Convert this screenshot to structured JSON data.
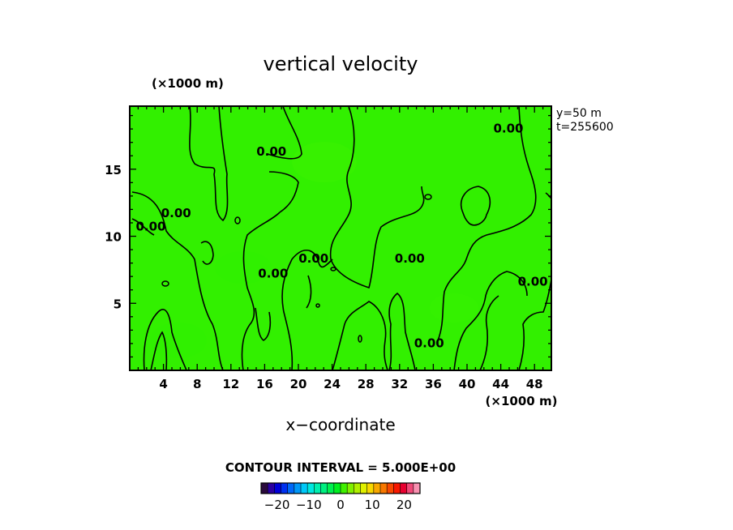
{
  "chart_data": {
    "type": "contour",
    "title": "vertical velocity",
    "xlabel": "x−coordinate",
    "y_unit_label": "(×1000 m)",
    "x_unit_label": "(×1000 m)",
    "xlim": [
      0,
      50
    ],
    "ylim": [
      0,
      19.7
    ],
    "x_ticks": [
      4,
      8,
      12,
      16,
      20,
      24,
      28,
      32,
      36,
      40,
      44,
      48
    ],
    "x_tick_labels": [
      "4",
      "8",
      "12",
      "16",
      "20",
      "24",
      "28",
      "32",
      "36",
      "40",
      "44",
      "48"
    ],
    "y_ticks": [
      5,
      10,
      15
    ],
    "y_tick_labels": [
      "5",
      "10",
      "15"
    ],
    "info_lines": [
      "y=50  m",
      "t=255600"
    ],
    "contour_interval_text": "CONTOUR INTERVAL = 5.000E+00",
    "contour_labels": [
      {
        "text": "0.00",
        "x": 5.5,
        "y": 11.7
      },
      {
        "text": "0.00",
        "x": 2.5,
        "y": 10.7
      },
      {
        "text": "0.00",
        "x": 16.8,
        "y": 16.3
      },
      {
        "text": "0.00",
        "x": 17.0,
        "y": 7.2
      },
      {
        "text": "0.00",
        "x": 21.8,
        "y": 8.3
      },
      {
        "text": "0.00",
        "x": 33.2,
        "y": 8.3
      },
      {
        "text": "0.00",
        "x": 35.5,
        "y": 2.0
      },
      {
        "text": "0.00",
        "x": 44.9,
        "y": 18.0
      },
      {
        "text": "0.00",
        "x": 47.8,
        "y": 6.6
      }
    ],
    "colorbar": {
      "min": -25,
      "max": 25,
      "tick_values": [
        -20,
        -10,
        0,
        10,
        20
      ],
      "tick_labels": [
        "−20",
        "−10",
        "0",
        "10",
        "20"
      ],
      "colors": [
        "#2a0a3c",
        "#2a00a0",
        "#0000d8",
        "#0030f0",
        "#0068f8",
        "#0098f8",
        "#00c8f8",
        "#00e8e0",
        "#00f0b0",
        "#00f080",
        "#00f050",
        "#00f020",
        "#40f000",
        "#80f000",
        "#b0f000",
        "#e0f000",
        "#f8d800",
        "#f8a800",
        "#f87800",
        "#f84800",
        "#f81800",
        "#e80030",
        "#f04878",
        "#f890b0"
      ]
    },
    "field_color": "#32f000"
  }
}
